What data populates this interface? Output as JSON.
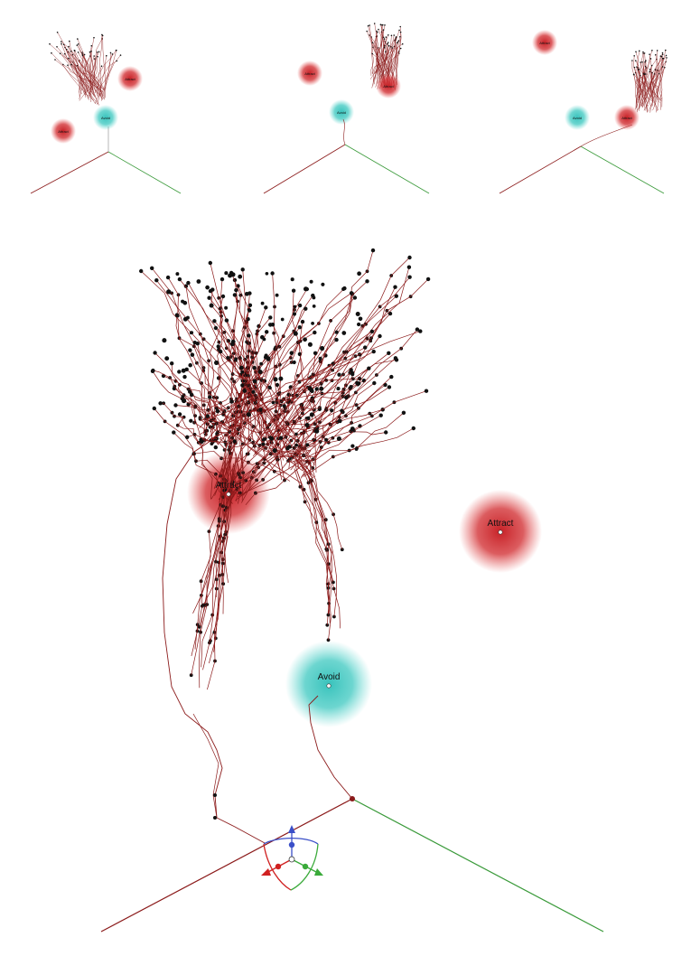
{
  "labels": {
    "attract": "Attract",
    "avoid": "Avoid"
  },
  "colors": {
    "background": "#ffffff",
    "path": "#8b1a1a",
    "node": "#111111",
    "attractor": "#cc2a2a",
    "avoider": "#3cc8c0",
    "axis_x": "#8b1a1a",
    "axis_y": "#3a9a3a",
    "gizmo_z": "#3a4fc8"
  },
  "icons": {
    "gizmo": "transform-gizmo-icon",
    "attractor": "attractor-sphere-icon",
    "avoider": "avoider-sphere-icon"
  }
}
